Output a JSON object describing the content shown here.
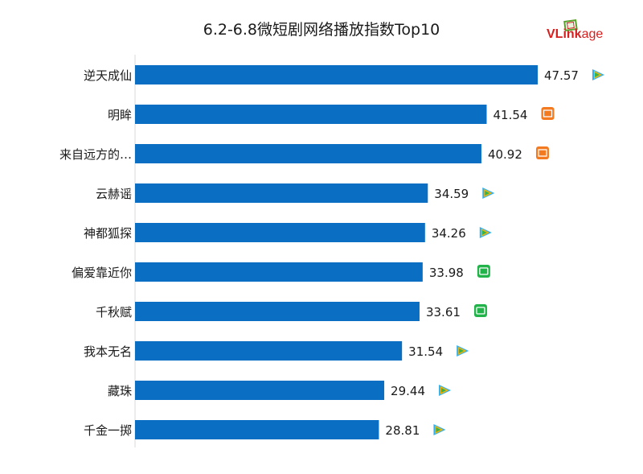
{
  "logo": {
    "text_v": "VL",
    "text_mid": "ink",
    "text_end": "age"
  },
  "chart_data": {
    "type": "bar",
    "orientation": "horizontal",
    "title": "6.2-6.8微短剧网络播放指数Top10",
    "categories": [
      "逆天成仙",
      "明眸",
      "来自远方的…",
      "云赫谣",
      "神都狐探",
      "偏爱靠近你",
      "千秋赋",
      "我本无名",
      "藏珠",
      "千金一掷"
    ],
    "values": [
      47.57,
      41.54,
      40.92,
      34.59,
      34.26,
      33.98,
      33.61,
      31.54,
      29.44,
      28.81
    ],
    "platform_icons": [
      "tencent-video-icon",
      "mango-tv-icon",
      "mango-tv-icon",
      "tencent-video-icon",
      "tencent-video-icon",
      "iqiyi-icon",
      "iqiyi-icon",
      "tencent-video-icon",
      "tencent-video-icon",
      "tencent-video-icon"
    ],
    "xlim": [
      0,
      50
    ],
    "bar_color": "#0a6fc2",
    "grid": false,
    "legend": "none",
    "colors": {
      "tencent": "#2fb0f0",
      "mango": "#f47a20",
      "iqiyi": "#22b34a"
    }
  }
}
